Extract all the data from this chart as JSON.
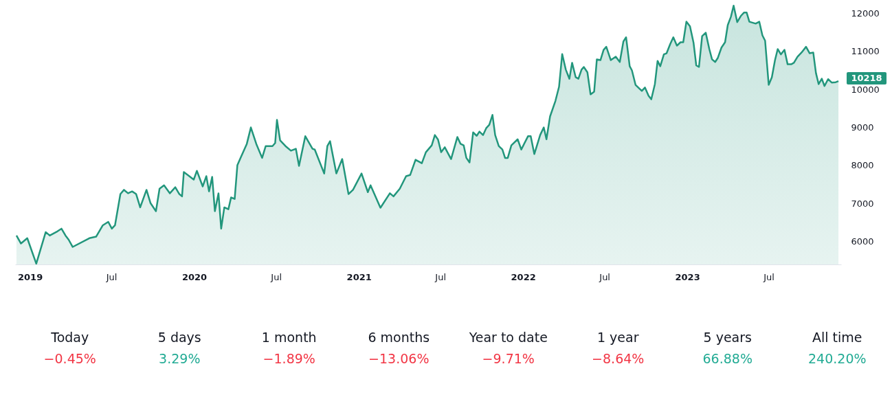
{
  "chart_data": [
    {
      "type": "area",
      "x": [
        "2018-12-02",
        "2018-12-12",
        "2018-12-26",
        "2019-01-15",
        "2019-02-05",
        "2019-02-14",
        "2019-03-03",
        "2019-03-12",
        "2019-03-21",
        "2019-03-28",
        "2019-04-06",
        "2019-05-13",
        "2019-05-28",
        "2019-06-12",
        "2019-06-24",
        "2019-07-02",
        "2019-07-09",
        "2019-07-21",
        "2019-07-29",
        "2019-08-07",
        "2019-08-16",
        "2019-08-25",
        "2019-09-03",
        "2019-09-17",
        "2019-09-26",
        "2019-10-08",
        "2019-10-16",
        "2019-10-26",
        "2019-11-08",
        "2019-11-20",
        "2019-11-29",
        "2019-12-05",
        "2019-12-09",
        "2019-12-31",
        "2020-01-07",
        "2020-01-20",
        "2020-01-28",
        "2020-02-03",
        "2020-02-10",
        "2020-02-16",
        "2020-02-24",
        "2020-03-01",
        "2020-03-08",
        "2020-03-17",
        "2020-03-23",
        "2020-03-31",
        "2020-04-06",
        "2020-04-13",
        "2020-04-27",
        "2020-05-06",
        "2020-05-18",
        "2020-05-31",
        "2020-06-08",
        "2020-06-23",
        "2020-06-29",
        "2020-07-03",
        "2020-07-10",
        "2020-07-22",
        "2020-08-03",
        "2020-08-14",
        "2020-08-21",
        "2020-09-04",
        "2020-09-20",
        "2020-09-25",
        "2020-10-16",
        "2020-10-23",
        "2020-10-29",
        "2020-11-12",
        "2020-11-25",
        "2020-12-09",
        "2020-12-19",
        "2021-01-07",
        "2021-01-21",
        "2021-01-27",
        "2021-02-18",
        "2021-03-11",
        "2021-03-19",
        "2021-04-02",
        "2021-04-16",
        "2021-04-25",
        "2021-05-07",
        "2021-05-21",
        "2021-05-30",
        "2021-06-12",
        "2021-06-19",
        "2021-06-26",
        "2021-07-03",
        "2021-07-11",
        "2021-07-25",
        "2021-08-08",
        "2021-08-15",
        "2021-08-22",
        "2021-08-28",
        "2021-09-04",
        "2021-09-12",
        "2021-09-20",
        "2021-09-26",
        "2021-10-04",
        "2021-10-11",
        "2021-10-18",
        "2021-10-25",
        "2021-10-31",
        "2021-11-08",
        "2021-11-16",
        "2021-11-22",
        "2021-11-28",
        "2021-12-06",
        "2021-12-20",
        "2021-12-28",
        "2022-01-12",
        "2022-01-18",
        "2022-01-26",
        "2022-02-08",
        "2022-02-16",
        "2022-02-22",
        "2022-03-02",
        "2022-03-14",
        "2022-03-22",
        "2022-03-29",
        "2022-04-06",
        "2022-04-14",
        "2022-04-20",
        "2022-04-28",
        "2022-05-04",
        "2022-05-11",
        "2022-05-16",
        "2022-05-24",
        "2022-05-31",
        "2022-06-08",
        "2022-06-14",
        "2022-06-22",
        "2022-06-29",
        "2022-07-05",
        "2022-07-15",
        "2022-07-26",
        "2022-08-04",
        "2022-08-12",
        "2022-08-18",
        "2022-08-26",
        "2022-08-31",
        "2022-09-08",
        "2022-09-22",
        "2022-09-29",
        "2022-10-07",
        "2022-10-13",
        "2022-10-21",
        "2022-10-27",
        "2022-11-02",
        "2022-11-10",
        "2022-11-16",
        "2022-11-24",
        "2022-12-01",
        "2022-12-09",
        "2022-12-17",
        "2022-12-23",
        "2022-12-30",
        "2023-01-07",
        "2023-01-15",
        "2023-01-21",
        "2023-01-27",
        "2023-02-03",
        "2023-02-11",
        "2023-02-19",
        "2023-02-25",
        "2023-03-04",
        "2023-03-10",
        "2023-03-18",
        "2023-03-26",
        "2023-04-01",
        "2023-04-08",
        "2023-04-14",
        "2023-04-22",
        "2023-04-30",
        "2023-05-07",
        "2023-05-13",
        "2023-05-19",
        "2023-06-02",
        "2023-06-10",
        "2023-06-17",
        "2023-06-23",
        "2023-07-01",
        "2023-07-08",
        "2023-07-15",
        "2023-07-21",
        "2023-07-28",
        "2023-08-05",
        "2023-08-12",
        "2023-08-20",
        "2023-08-26",
        "2023-09-03",
        "2023-09-12",
        "2023-09-22",
        "2023-09-30",
        "2023-10-08",
        "2023-10-14",
        "2023-10-20",
        "2023-10-27",
        "2023-11-02",
        "2023-11-10",
        "2023-11-18",
        "2023-11-27",
        "2023-12-03"
      ],
      "series": [
        {
          "color": "#22967c",
          "values": [
            6160,
            5950,
            6090,
            5420,
            6250,
            6160,
            6270,
            6340,
            6160,
            6050,
            5860,
            6090,
            6130,
            6430,
            6520,
            6340,
            6430,
            7250,
            7360,
            7270,
            7320,
            7250,
            6900,
            7360,
            7010,
            6800,
            7390,
            7480,
            7270,
            7430,
            7250,
            7190,
            7830,
            7630,
            7860,
            7450,
            7720,
            7320,
            7700,
            6800,
            7270,
            6340,
            6900,
            6850,
            7160,
            7120,
            8010,
            8200,
            8570,
            9000,
            8570,
            8200,
            8510,
            8510,
            8590,
            9200,
            8660,
            8510,
            8390,
            8440,
            7990,
            8770,
            8440,
            8420,
            7790,
            8510,
            8640,
            7790,
            8170,
            7250,
            7360,
            7790,
            7300,
            7480,
            6890,
            7270,
            7190,
            7390,
            7720,
            7750,
            8150,
            8060,
            8350,
            8530,
            8800,
            8680,
            8350,
            8480,
            8170,
            8750,
            8570,
            8530,
            8200,
            8080,
            8870,
            8780,
            8890,
            8800,
            8980,
            9070,
            9330,
            8800,
            8510,
            8420,
            8200,
            8200,
            8530,
            8690,
            8420,
            8770,
            8770,
            8300,
            8800,
            9000,
            8690,
            9290,
            9700,
            10070,
            10930,
            10520,
            10280,
            10700,
            10320,
            10280,
            10520,
            10590,
            10450,
            9870,
            9940,
            10790,
            10770,
            11040,
            11120,
            10770,
            10860,
            10720,
            11260,
            11370,
            10610,
            10500,
            10120,
            9960,
            10050,
            9830,
            9740,
            10140,
            10750,
            10610,
            10920,
            10950,
            11190,
            11370,
            11150,
            11240,
            11240,
            11780,
            11660,
            11220,
            10630,
            10590,
            11400,
            11490,
            11060,
            10790,
            10720,
            10830,
            11100,
            11240,
            11690,
            11910,
            12200,
            11770,
            11930,
            12020,
            12020,
            11780,
            11730,
            11780,
            11420,
            11280,
            10120,
            10320,
            10770,
            11060,
            10920,
            11040,
            10660,
            10660,
            10700,
            10860,
            10970,
            11120,
            10950,
            10970,
            10430,
            10140,
            10280,
            10090,
            10270,
            10180,
            10190,
            10218
          ]
        }
      ],
      "xlim": [
        "2018-11-29",
        "2023-12-09"
      ],
      "ylim": [
        5400,
        12350
      ],
      "xticks": [
        {
          "value": "2019-01-01",
          "label": "2019"
        },
        {
          "value": "2019-07-01",
          "label": "Jul"
        },
        {
          "value": "2020-01-01",
          "label": "2020"
        },
        {
          "value": "2020-07-01",
          "label": "Jul"
        },
        {
          "value": "2021-01-01",
          "label": "2021"
        },
        {
          "value": "2021-07-01",
          "label": "Jul"
        },
        {
          "value": "2022-01-01",
          "label": "2022"
        },
        {
          "value": "2022-07-01",
          "label": "Jul"
        },
        {
          "value": "2023-01-01",
          "label": "2023"
        },
        {
          "value": "2023-07-01",
          "label": "Jul"
        }
      ],
      "yticks": [
        6000,
        7000,
        8000,
        9000,
        10000,
        11000,
        12000
      ],
      "annotations": [
        {
          "text": "10218",
          "x": "2023-12-03",
          "y": 10218
        }
      ]
    },
    {
      "type": "other",
      "categories": [
        "Today",
        "5 days",
        "1 month",
        "6 months",
        "Year to date",
        "1 year",
        "5 years",
        "All time"
      ],
      "values": [
        -0.45,
        3.29,
        -1.89,
        -13.06,
        -9.71,
        -8.64,
        66.88,
        240.2
      ],
      "value_labels": [
        "−0.45%",
        "3.29%",
        "−1.89%",
        "−13.06%",
        "−9.71%",
        "−8.64%",
        "66.88%",
        "240.20%"
      ],
      "colors": [
        "#f23645",
        "#22ab94",
        "#f23645",
        "#f23645",
        "#f23645",
        "#f23645",
        "#22ab94",
        "#22ab94"
      ]
    }
  ]
}
